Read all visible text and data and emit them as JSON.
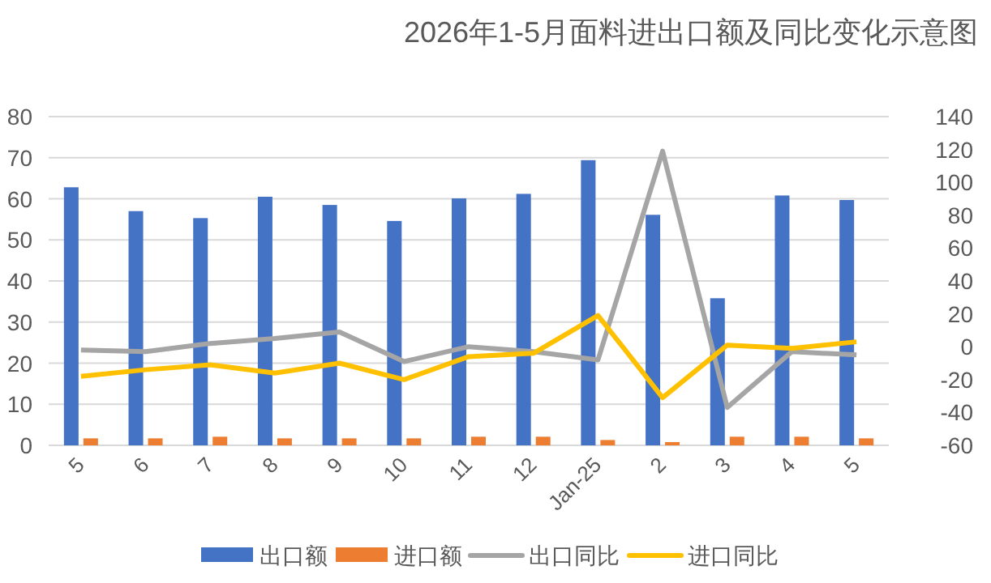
{
  "chart_data": {
    "type": "bar",
    "title": "2026年1-5月面料进出口额及同比变化示意图",
    "categories": [
      "5",
      "6",
      "7",
      "8",
      "9",
      "10",
      "11",
      "12",
      "Jan-25",
      "2",
      "3",
      "4",
      "5"
    ],
    "series": [
      {
        "name": "出口额",
        "color": "#4472c4",
        "values": [
          62.8,
          57,
          55.3,
          60.5,
          58.5,
          54.6,
          60.1,
          61.2,
          69.4,
          56.1,
          35.8,
          60.8,
          59.7
        ]
      },
      {
        "name": "进口额",
        "color": "#ed7d31",
        "values": [
          1.7,
          1.7,
          2.1,
          1.7,
          1.7,
          1.7,
          2.1,
          2.1,
          1.3,
          0.8,
          2.1,
          2.1,
          1.7
        ]
      },
      {
        "name": "出口同比",
        "type": "line",
        "axis": "y2",
        "color": "#a5a5a5",
        "values": [
          -2,
          -3,
          2,
          5,
          9,
          -9,
          0,
          -3,
          -8,
          119,
          -37,
          -3,
          -5
        ]
      },
      {
        "name": "进口同比",
        "type": "line",
        "axis": "y2",
        "color": "#ffc000",
        "values": [
          -18,
          -14,
          -11,
          -16,
          -10,
          -20,
          -6,
          -4,
          19,
          -31,
          1,
          -1,
          3
        ]
      }
    ],
    "ylim": [
      0,
      80
    ],
    "yticks": [
      0,
      10,
      20,
      30,
      40,
      50,
      60,
      70,
      80
    ],
    "y2lim": [
      -60,
      140
    ],
    "y2ticks": [
      -60,
      -40,
      -20,
      0,
      20,
      40,
      60,
      80,
      100,
      120,
      140
    ],
    "grid": "y",
    "legend": "bottom",
    "marker": "none"
  }
}
